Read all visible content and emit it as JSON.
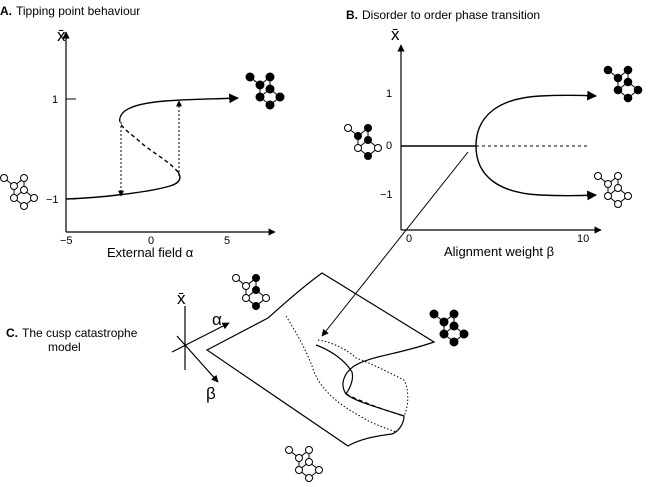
{
  "panelA": {
    "letter": "A.",
    "title": "Tipping point behaviour",
    "ylabel": "x̄",
    "xlabel": "External field α",
    "yticks": [
      "1",
      "−1"
    ],
    "xticks": [
      "−5",
      "0",
      "5"
    ]
  },
  "panelB": {
    "letter": "B.",
    "title": "Disorder to order phase transition",
    "ylabel": "x̄",
    "xlabel": "Alignment weight β",
    "yticks": [
      "1",
      "0",
      "−1"
    ],
    "xticks": [
      "0",
      "10"
    ]
  },
  "panelC": {
    "letter": "C.",
    "title_line1": "The cusp catastrophe",
    "title_line2": "model",
    "axis_x": "x̄",
    "axis_alpha": "α",
    "axis_beta": "β"
  },
  "colors": {
    "line": "#000000",
    "filled_node": "#000000",
    "empty_node": "#ffffff"
  }
}
